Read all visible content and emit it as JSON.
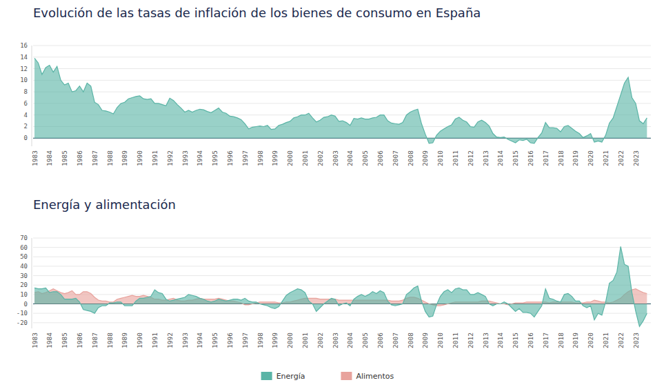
{
  "chart_data": [
    {
      "type": "area",
      "title": "Evolución de las tasas de inflación de los bienes de consumo en España",
      "categories": [
        "1983",
        null,
        null,
        null,
        "1984",
        null,
        null,
        null,
        "1985",
        null,
        null,
        null,
        "1986",
        null,
        null,
        null,
        "1987",
        null,
        null,
        null,
        "1988",
        null,
        null,
        null,
        "1989",
        null,
        null,
        null,
        "1990",
        null,
        null,
        null,
        "1991",
        null,
        null,
        null,
        "1992",
        null,
        null,
        null,
        "1993",
        null,
        null,
        null,
        "1994",
        null,
        null,
        null,
        "1995",
        null,
        null,
        null,
        "1996",
        null,
        null,
        null,
        "1997",
        null,
        null,
        null,
        "1998",
        null,
        null,
        null,
        "1999",
        null,
        null,
        null,
        "2000",
        null,
        null,
        null,
        "2001",
        null,
        null,
        null,
        "2002",
        null,
        null,
        null,
        "2003",
        null,
        null,
        null,
        "2004",
        null,
        null,
        null,
        "2005",
        null,
        null,
        null,
        "2006",
        null,
        null,
        null,
        "2007",
        null,
        null,
        null,
        "2008",
        null,
        null,
        null,
        "2009",
        null,
        null,
        null,
        "2010",
        null,
        null,
        null,
        "2011",
        null,
        null,
        null,
        "2012",
        null,
        null,
        null,
        "2013",
        null,
        null,
        null,
        "2014",
        null,
        null,
        null,
        "2015",
        null,
        null,
        null,
        "2016",
        null,
        null,
        null,
        "2017",
        null,
        null,
        null,
        "2018",
        null,
        null,
        null,
        "2019",
        null,
        null,
        null,
        "2020",
        null,
        null,
        null,
        "2021",
        null,
        null,
        null,
        "2022",
        null,
        null,
        null,
        "2023",
        null,
        null,
        null
      ],
      "values": [
        13.8,
        13.0,
        11.0,
        12.2,
        12.6,
        11.4,
        12.4,
        10.0,
        9.2,
        9.5,
        8.0,
        8.2,
        9.0,
        8.0,
        9.5,
        9.0,
        6.2,
        5.8,
        4.8,
        4.7,
        4.5,
        4.2,
        5.3,
        6.0,
        6.2,
        6.8,
        7.0,
        7.2,
        7.3,
        6.8,
        6.7,
        6.8,
        6.0,
        6.0,
        5.8,
        5.6,
        6.9,
        6.5,
        5.8,
        5.2,
        4.5,
        4.8,
        4.5,
        4.8,
        5.0,
        4.9,
        4.6,
        4.4,
        4.8,
        5.2,
        4.5,
        4.3,
        3.8,
        3.7,
        3.5,
        3.2,
        2.5,
        1.6,
        1.9,
        2.0,
        2.1,
        2.0,
        2.2,
        1.5,
        1.6,
        2.2,
        2.4,
        2.7,
        2.9,
        3.5,
        3.7,
        4.0,
        4.0,
        4.3,
        3.5,
        2.8,
        3.1,
        3.6,
        3.7,
        4.0,
        3.8,
        2.9,
        3.0,
        2.7,
        2.2,
        3.4,
        3.3,
        3.5,
        3.3,
        3.3,
        3.5,
        3.6,
        4.0,
        4.0,
        3.0,
        2.6,
        2.5,
        2.4,
        2.7,
        4.0,
        4.5,
        4.8,
        5.0,
        2.5,
        0.7,
        -0.9,
        -0.8,
        0.5,
        1.2,
        1.6,
        2.0,
        2.3,
        3.3,
        3.6,
        3.1,
        2.8,
        2.0,
        1.9,
        2.8,
        3.1,
        2.7,
        2.1,
        0.8,
        0.2,
        0.1,
        0.2,
        -0.2,
        -0.5,
        -0.8,
        -0.3,
        -0.4,
        -0.2,
        -0.8,
        -0.9,
        0.1,
        0.9,
        2.7,
        1.8,
        1.8,
        1.7,
        1.1,
        2.0,
        2.2,
        1.7,
        1.2,
        0.8,
        0.1,
        0.4,
        0.8,
        -0.7,
        -0.5,
        -0.7,
        0.5,
        2.6,
        3.5,
        5.5,
        7.5,
        9.5,
        10.5,
        7.0,
        6.0,
        3.0,
        2.5,
        3.5
      ],
      "color": "#5ab4a6",
      "ylim": [
        -1.4,
        16
      ],
      "yticks": [
        0,
        2,
        4,
        6,
        8,
        10,
        12,
        14,
        16
      ],
      "grid": true
    },
    {
      "type": "area",
      "title": "Energía y alimentación",
      "categories": [
        "1983",
        null,
        null,
        null,
        "1984",
        null,
        null,
        null,
        "1985",
        null,
        null,
        null,
        "1986",
        null,
        null,
        null,
        "1987",
        null,
        null,
        null,
        "1988",
        null,
        null,
        null,
        "1989",
        null,
        null,
        null,
        "1990",
        null,
        null,
        null,
        "1991",
        null,
        null,
        null,
        "1992",
        null,
        null,
        null,
        "1993",
        null,
        null,
        null,
        "1994",
        null,
        null,
        null,
        "1995",
        null,
        null,
        null,
        "1996",
        null,
        null,
        null,
        "1997",
        null,
        null,
        null,
        "1998",
        null,
        null,
        null,
        "1999",
        null,
        null,
        null,
        "2000",
        null,
        null,
        null,
        "2001",
        null,
        null,
        null,
        "2002",
        null,
        null,
        null,
        "2003",
        null,
        null,
        null,
        "2004",
        null,
        null,
        null,
        "2005",
        null,
        null,
        null,
        "2006",
        null,
        null,
        null,
        "2007",
        null,
        null,
        null,
        "2008",
        null,
        null,
        null,
        "2009",
        null,
        null,
        null,
        "2010",
        null,
        null,
        null,
        "2011",
        null,
        null,
        null,
        "2012",
        null,
        null,
        null,
        "2013",
        null,
        null,
        null,
        "2014",
        null,
        null,
        null,
        "2015",
        null,
        null,
        null,
        "2016",
        null,
        null,
        null,
        "2017",
        null,
        null,
        null,
        "2018",
        null,
        null,
        null,
        "2019",
        null,
        null,
        null,
        "2020",
        null,
        null,
        null,
        "2021",
        null,
        null,
        null,
        "2022",
        null,
        null,
        null,
        "2023",
        null,
        null,
        null
      ],
      "series": [
        {
          "name": "Energía",
          "color": "#5ab4a6",
          "values": [
            17,
            16,
            16,
            17,
            12,
            13,
            13,
            10,
            5,
            5,
            5,
            6,
            2,
            -6,
            -7,
            -8,
            -10,
            -4,
            -2,
            -2,
            1,
            1,
            2,
            2,
            -2,
            -2,
            -2,
            3,
            6,
            6,
            7,
            8,
            15,
            12,
            11,
            5,
            3,
            4,
            5,
            6,
            7,
            10,
            9,
            8,
            6,
            5,
            3,
            2,
            3,
            5,
            4,
            3,
            4,
            5,
            5,
            4,
            6,
            3,
            2,
            2,
            0,
            -1,
            -2,
            -4,
            -5,
            -3,
            3,
            9,
            12,
            14,
            16,
            15,
            12,
            3,
            0,
            -8,
            -4,
            0,
            3,
            6,
            5,
            -2,
            0,
            1,
            -2,
            5,
            8,
            10,
            8,
            10,
            13,
            11,
            14,
            12,
            3,
            -1,
            -2,
            -1,
            0,
            10,
            13,
            17,
            19,
            3,
            -8,
            -14,
            -13,
            -1,
            8,
            13,
            15,
            12,
            16,
            17,
            15,
            15,
            10,
            10,
            12,
            10,
            8,
            0,
            -2,
            0,
            0,
            2,
            0,
            -4,
            -8,
            -5,
            -9,
            -9,
            -10,
            -14,
            -8,
            -2,
            16,
            6,
            5,
            3,
            2,
            10,
            11,
            8,
            3,
            3,
            -2,
            -4,
            -2,
            -17,
            -10,
            -12,
            2,
            22,
            25,
            34,
            61,
            42,
            40,
            12,
            -8,
            -24,
            -18,
            -10
          ]
        },
        {
          "name": "Alimentos",
          "color": "#e8a39d",
          "values": [
            12,
            13,
            11,
            12,
            14,
            16,
            14,
            12,
            11,
            12,
            14,
            10,
            10,
            13,
            13,
            11,
            7,
            4,
            3,
            3,
            2,
            2,
            5,
            6,
            7,
            8,
            9,
            8,
            8,
            9,
            8,
            7,
            5,
            5,
            4,
            4,
            5,
            6,
            4,
            3,
            3,
            4,
            4,
            5,
            6,
            5,
            5,
            5,
            5,
            6,
            5,
            4,
            3,
            3,
            2,
            1,
            -1,
            -1,
            0,
            1,
            2,
            2,
            2,
            2,
            2,
            1,
            1,
            2,
            2,
            3,
            4,
            5,
            6,
            6,
            6,
            6,
            5,
            5,
            5,
            5,
            5,
            4,
            4,
            4,
            4,
            4,
            4,
            4,
            4,
            4,
            4,
            4,
            4,
            4,
            4,
            3,
            3,
            3,
            4,
            6,
            7,
            7,
            6,
            4,
            2,
            0,
            -1,
            -2,
            -2,
            -1,
            0,
            1,
            2,
            2,
            2,
            2,
            2,
            2,
            2,
            3,
            3,
            3,
            2,
            1,
            0,
            0,
            -1,
            0,
            1,
            1,
            1,
            2,
            2,
            2,
            2,
            2,
            2,
            1,
            2,
            2,
            2,
            2,
            2,
            2,
            1,
            1,
            1,
            2,
            2,
            4,
            3,
            2,
            2,
            1,
            2,
            4,
            6,
            10,
            13,
            15,
            16,
            14,
            12,
            11
          ]
        }
      ],
      "ylim": [
        -26,
        70
      ],
      "yticks": [
        -20,
        -10,
        0,
        10,
        20,
        30,
        40,
        50,
        60,
        70
      ],
      "grid": true,
      "legend": "bottom"
    }
  ]
}
